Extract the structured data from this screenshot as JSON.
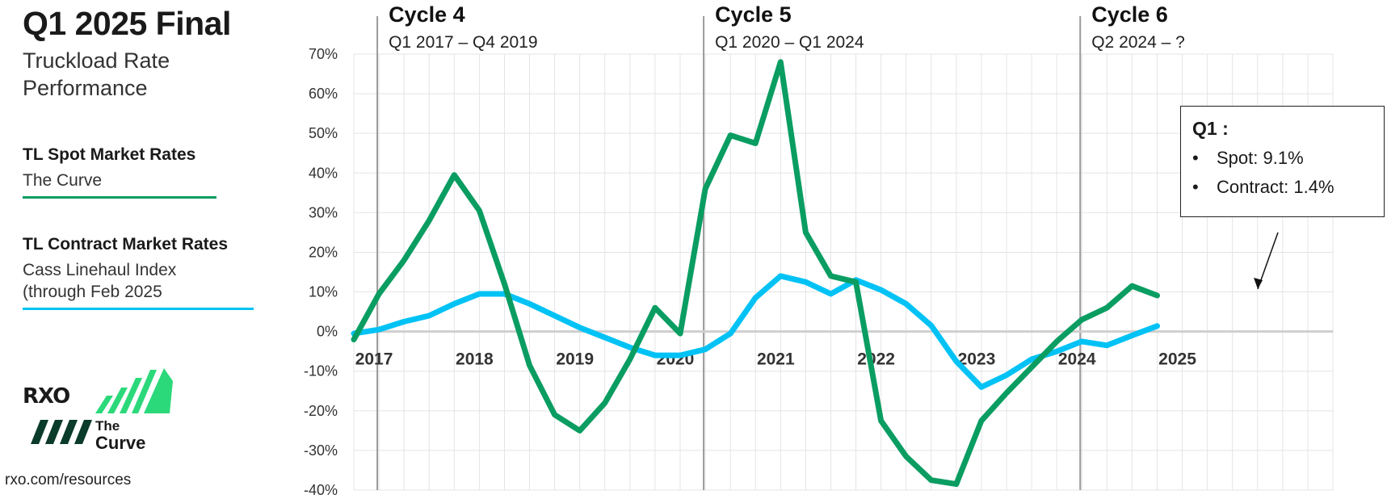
{
  "page": {
    "title": "Q1 2025 Final",
    "subtitle_line1": "Truckload Rate",
    "subtitle_line2": "Performance",
    "legend": [
      {
        "heading": "TL Spot Market Rates",
        "line1": "The Curve",
        "line2": "",
        "color": "#0a9d62"
      },
      {
        "heading": "TL Contract Market Rates",
        "line1": "Cass Linehaul Index",
        "line2": "(through Feb 2025",
        "color": "#00c2f5"
      }
    ],
    "logo": {
      "brand": "RXO",
      "line1": "The",
      "line2": "Curve"
    },
    "url": "rxo.com/resources"
  },
  "callout": {
    "title": "Q1 :",
    "items": [
      "Spot: 9.1%",
      "Contract: 1.4%"
    ]
  },
  "chart_data": {
    "type": "line",
    "ylim": [
      -40,
      70
    ],
    "yticks": [
      70,
      60,
      50,
      40,
      30,
      20,
      10,
      0,
      -10,
      -20,
      -30,
      -40
    ],
    "ytick_labels": [
      "70%",
      "60%",
      "50%",
      "40%",
      "30%",
      "20%",
      "10%",
      "0%",
      "-10%",
      "-20%",
      "-30%",
      "-40%"
    ],
    "xlim": [
      2017,
      2026.75
    ],
    "year_labels": [
      "2017",
      "2018",
      "2019",
      "2020",
      "2021",
      "2022",
      "2023",
      "2024",
      "2025"
    ],
    "grid": true,
    "cycles": [
      {
        "title": "Cycle 4",
        "range": "Q1 2017 – Q4 2019",
        "start": 2017.25
      },
      {
        "title": "Cycle 5",
        "range": "Q1 2020 – Q1 2024",
        "start": 2020.5
      },
      {
        "title": "Cycle 6",
        "range": "Q2 2024 – ?",
        "start": 2024.25
      }
    ],
    "series": [
      {
        "name": "TL Spot Market Rates",
        "color": "#0a9d62",
        "x": [
          2017.0,
          2017.25,
          2017.5,
          2017.75,
          2018.0,
          2018.25,
          2018.5,
          2018.75,
          2019.0,
          2019.25,
          2019.5,
          2019.75,
          2020.0,
          2020.25,
          2020.5,
          2020.75,
          2021.0,
          2021.25,
          2021.5,
          2021.75,
          2022.0,
          2022.25,
          2022.5,
          2022.75,
          2023.0,
          2023.25,
          2023.5,
          2023.75,
          2024.0,
          2024.25,
          2024.5,
          2024.75,
          2025.0
        ],
        "values": [
          -2,
          9.5,
          18,
          28,
          39.5,
          30.5,
          12,
          -8.5,
          -21,
          -25,
          -18,
          -7,
          6,
          -0.5,
          36,
          49.5,
          47.5,
          68,
          25,
          14,
          12.5,
          -22.5,
          -31.5,
          -37.5,
          -38.5,
          -22.5,
          -15.5,
          -9,
          -2.5,
          3,
          6,
          11.5,
          9.1
        ]
      },
      {
        "name": "TL Contract Market Rates",
        "color": "#00c2f5",
        "x": [
          2017.0,
          2017.25,
          2017.5,
          2017.75,
          2018.0,
          2018.25,
          2018.5,
          2018.75,
          2019.0,
          2019.25,
          2019.5,
          2019.75,
          2020.0,
          2020.25,
          2020.5,
          2020.75,
          2021.0,
          2021.25,
          2021.5,
          2021.75,
          2022.0,
          2022.25,
          2022.5,
          2022.75,
          2023.0,
          2023.25,
          2023.5,
          2023.75,
          2024.0,
          2024.25,
          2024.5,
          2024.75,
          2025.0
        ],
        "values": [
          -0.5,
          0.5,
          2.5,
          4,
          7,
          9.5,
          9.5,
          7,
          4,
          1,
          -1.5,
          -4,
          -6,
          -6,
          -4.5,
          -0.5,
          8.5,
          14,
          12.5,
          9.5,
          13,
          10.5,
          7,
          1.5,
          -7.5,
          -14,
          -11,
          -7,
          -5,
          -2.5,
          -3.5,
          -1,
          1.4
        ]
      }
    ]
  }
}
